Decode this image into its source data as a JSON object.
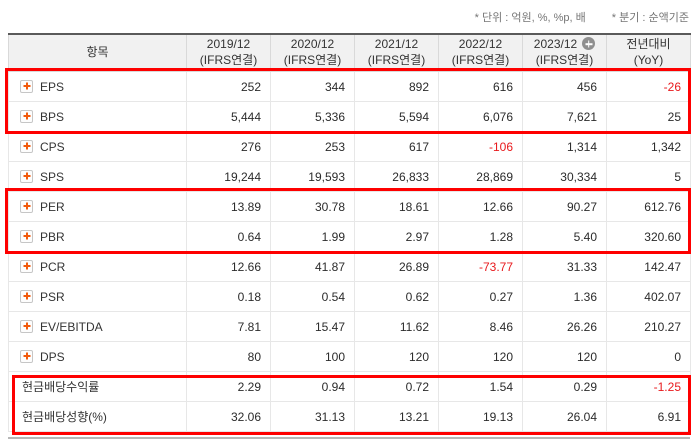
{
  "notes": {
    "unit": "* 단위 : 억원, %, %p, 배",
    "basis": "* 분기 : 순액기준"
  },
  "table": {
    "item_header": "항목",
    "columns": [
      {
        "period": "2019/12",
        "standard": "(IFRS연결)",
        "badge": false
      },
      {
        "period": "2020/12",
        "standard": "(IFRS연결)",
        "badge": false
      },
      {
        "period": "2021/12",
        "standard": "(IFRS연결)",
        "badge": false
      },
      {
        "period": "2022/12",
        "standard": "(IFRS연결)",
        "badge": false
      },
      {
        "period": "2023/12",
        "standard": "(IFRS연결)",
        "badge": true
      },
      {
        "period": "전년대비",
        "standard": "(YoY)",
        "badge": false
      }
    ],
    "rows": [
      {
        "label": "EPS",
        "icon": true,
        "values": [
          "252",
          "344",
          "892",
          "616",
          "456",
          "-26"
        ]
      },
      {
        "label": "BPS",
        "icon": true,
        "values": [
          "5,444",
          "5,336",
          "5,594",
          "6,076",
          "7,621",
          "25"
        ]
      },
      {
        "label": "CPS",
        "icon": true,
        "values": [
          "276",
          "253",
          "617",
          "-106",
          "1,314",
          "1,342"
        ]
      },
      {
        "label": "SPS",
        "icon": true,
        "values": [
          "19,244",
          "19,593",
          "26,833",
          "28,869",
          "30,334",
          "5"
        ]
      },
      {
        "label": "PER",
        "icon": true,
        "values": [
          "13.89",
          "30.78",
          "18.61",
          "12.66",
          "90.27",
          "612.76"
        ]
      },
      {
        "label": "PBR",
        "icon": true,
        "values": [
          "0.64",
          "1.99",
          "2.97",
          "1.28",
          "5.40",
          "320.60"
        ]
      },
      {
        "label": "PCR",
        "icon": true,
        "values": [
          "12.66",
          "41.87",
          "26.89",
          "-73.77",
          "31.33",
          "142.47"
        ]
      },
      {
        "label": "PSR",
        "icon": true,
        "values": [
          "0.18",
          "0.54",
          "0.62",
          "0.27",
          "1.36",
          "402.07"
        ]
      },
      {
        "label": "EV/EBITDA",
        "icon": true,
        "values": [
          "7.81",
          "15.47",
          "11.62",
          "8.46",
          "26.26",
          "210.27"
        ]
      },
      {
        "label": "DPS",
        "icon": true,
        "values": [
          "80",
          "100",
          "120",
          "120",
          "120",
          "0"
        ]
      },
      {
        "label": "현금배당수익률",
        "icon": false,
        "values": [
          "2.29",
          "0.94",
          "0.72",
          "1.54",
          "0.29",
          "-1.25"
        ]
      },
      {
        "label": "현금배당성향(%)",
        "icon": false,
        "values": [
          "32.06",
          "31.13",
          "13.21",
          "19.13",
          "26.04",
          "6.91"
        ]
      }
    ],
    "highlighted_row_groups": [
      {
        "rows": [
          "EPS",
          "BPS"
        ],
        "start": 0,
        "end": 1,
        "indent": false
      },
      {
        "rows": [
          "PER",
          "PBR"
        ],
        "start": 4,
        "end": 5,
        "indent": false
      },
      {
        "rows": [
          "현금배당수익률",
          "현금배당성향(%)"
        ],
        "start": 10,
        "end": 11,
        "indent": true
      }
    ],
    "colors": {
      "highlight_box": "#fe0000",
      "negative_value": "#e8191c",
      "plus_icon": "#f2590a",
      "header_background": "#f1f1f1"
    }
  }
}
